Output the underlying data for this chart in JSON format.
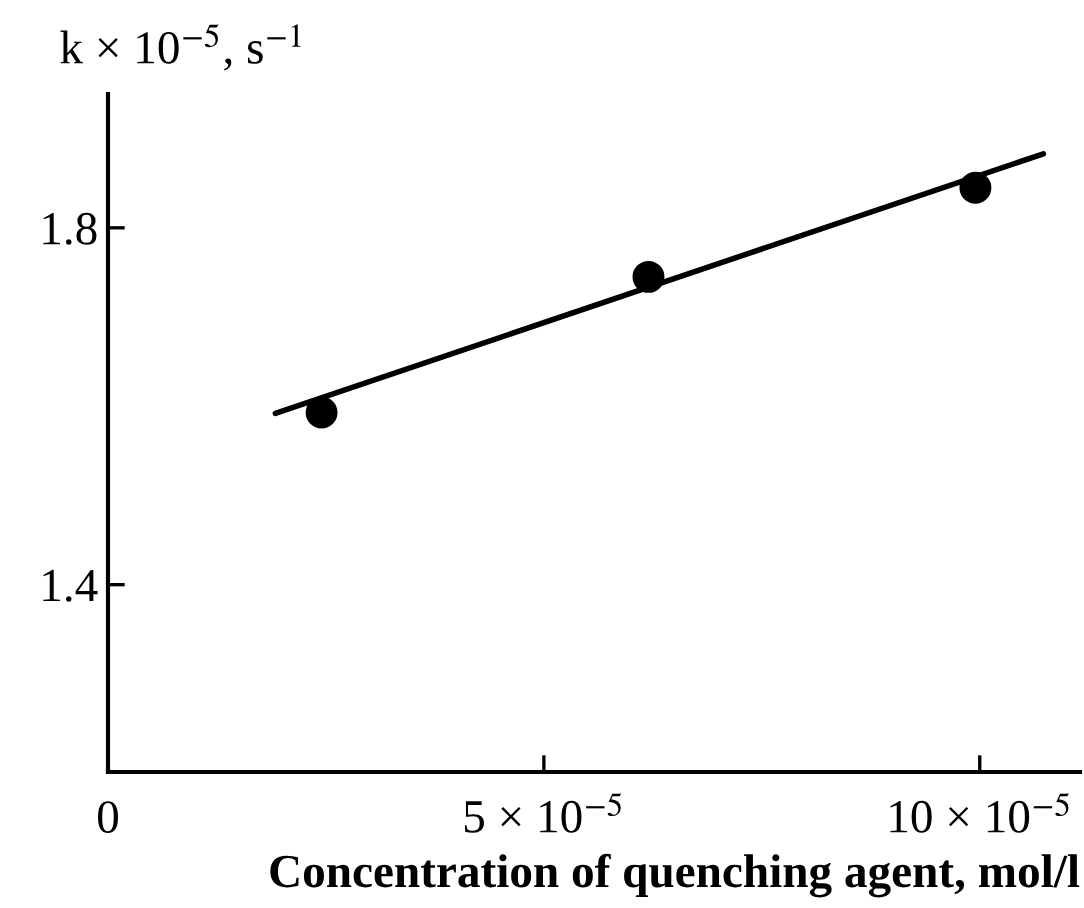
{
  "chart_data": {
    "type": "scatter",
    "xlabel": "Concentration of quenching agent, mol/l",
    "ylabel": "k × 10$^{−5}$, s$^{−1}$",
    "xlim": [
      0,
      0.0001115
    ],
    "ylim": [
      1.19,
      1.95
    ],
    "xticks": [
      0,
      {
        "value": 5e-05,
        "label": "5 × 10$^{−5}$"
      },
      {
        "value": 0.0001,
        "label": "10 × 10$^{−5}$"
      }
    ],
    "yticks": [
      1.4,
      1.8
    ],
    "grid": false,
    "series": [
      {
        "color": "#000000",
        "marker": "circle",
        "x": [
          2.45e-05,
          6.2e-05,
          9.95e-05
        ],
        "values": [
          1.593,
          1.745,
          1.845
        ]
      },
      {
        "type": "line",
        "color": "#000000",
        "line_style": "solid",
        "x": [
          1.92e-05,
          0.0001073
        ],
        "values": [
          1.592,
          1.883
        ]
      }
    ]
  }
}
